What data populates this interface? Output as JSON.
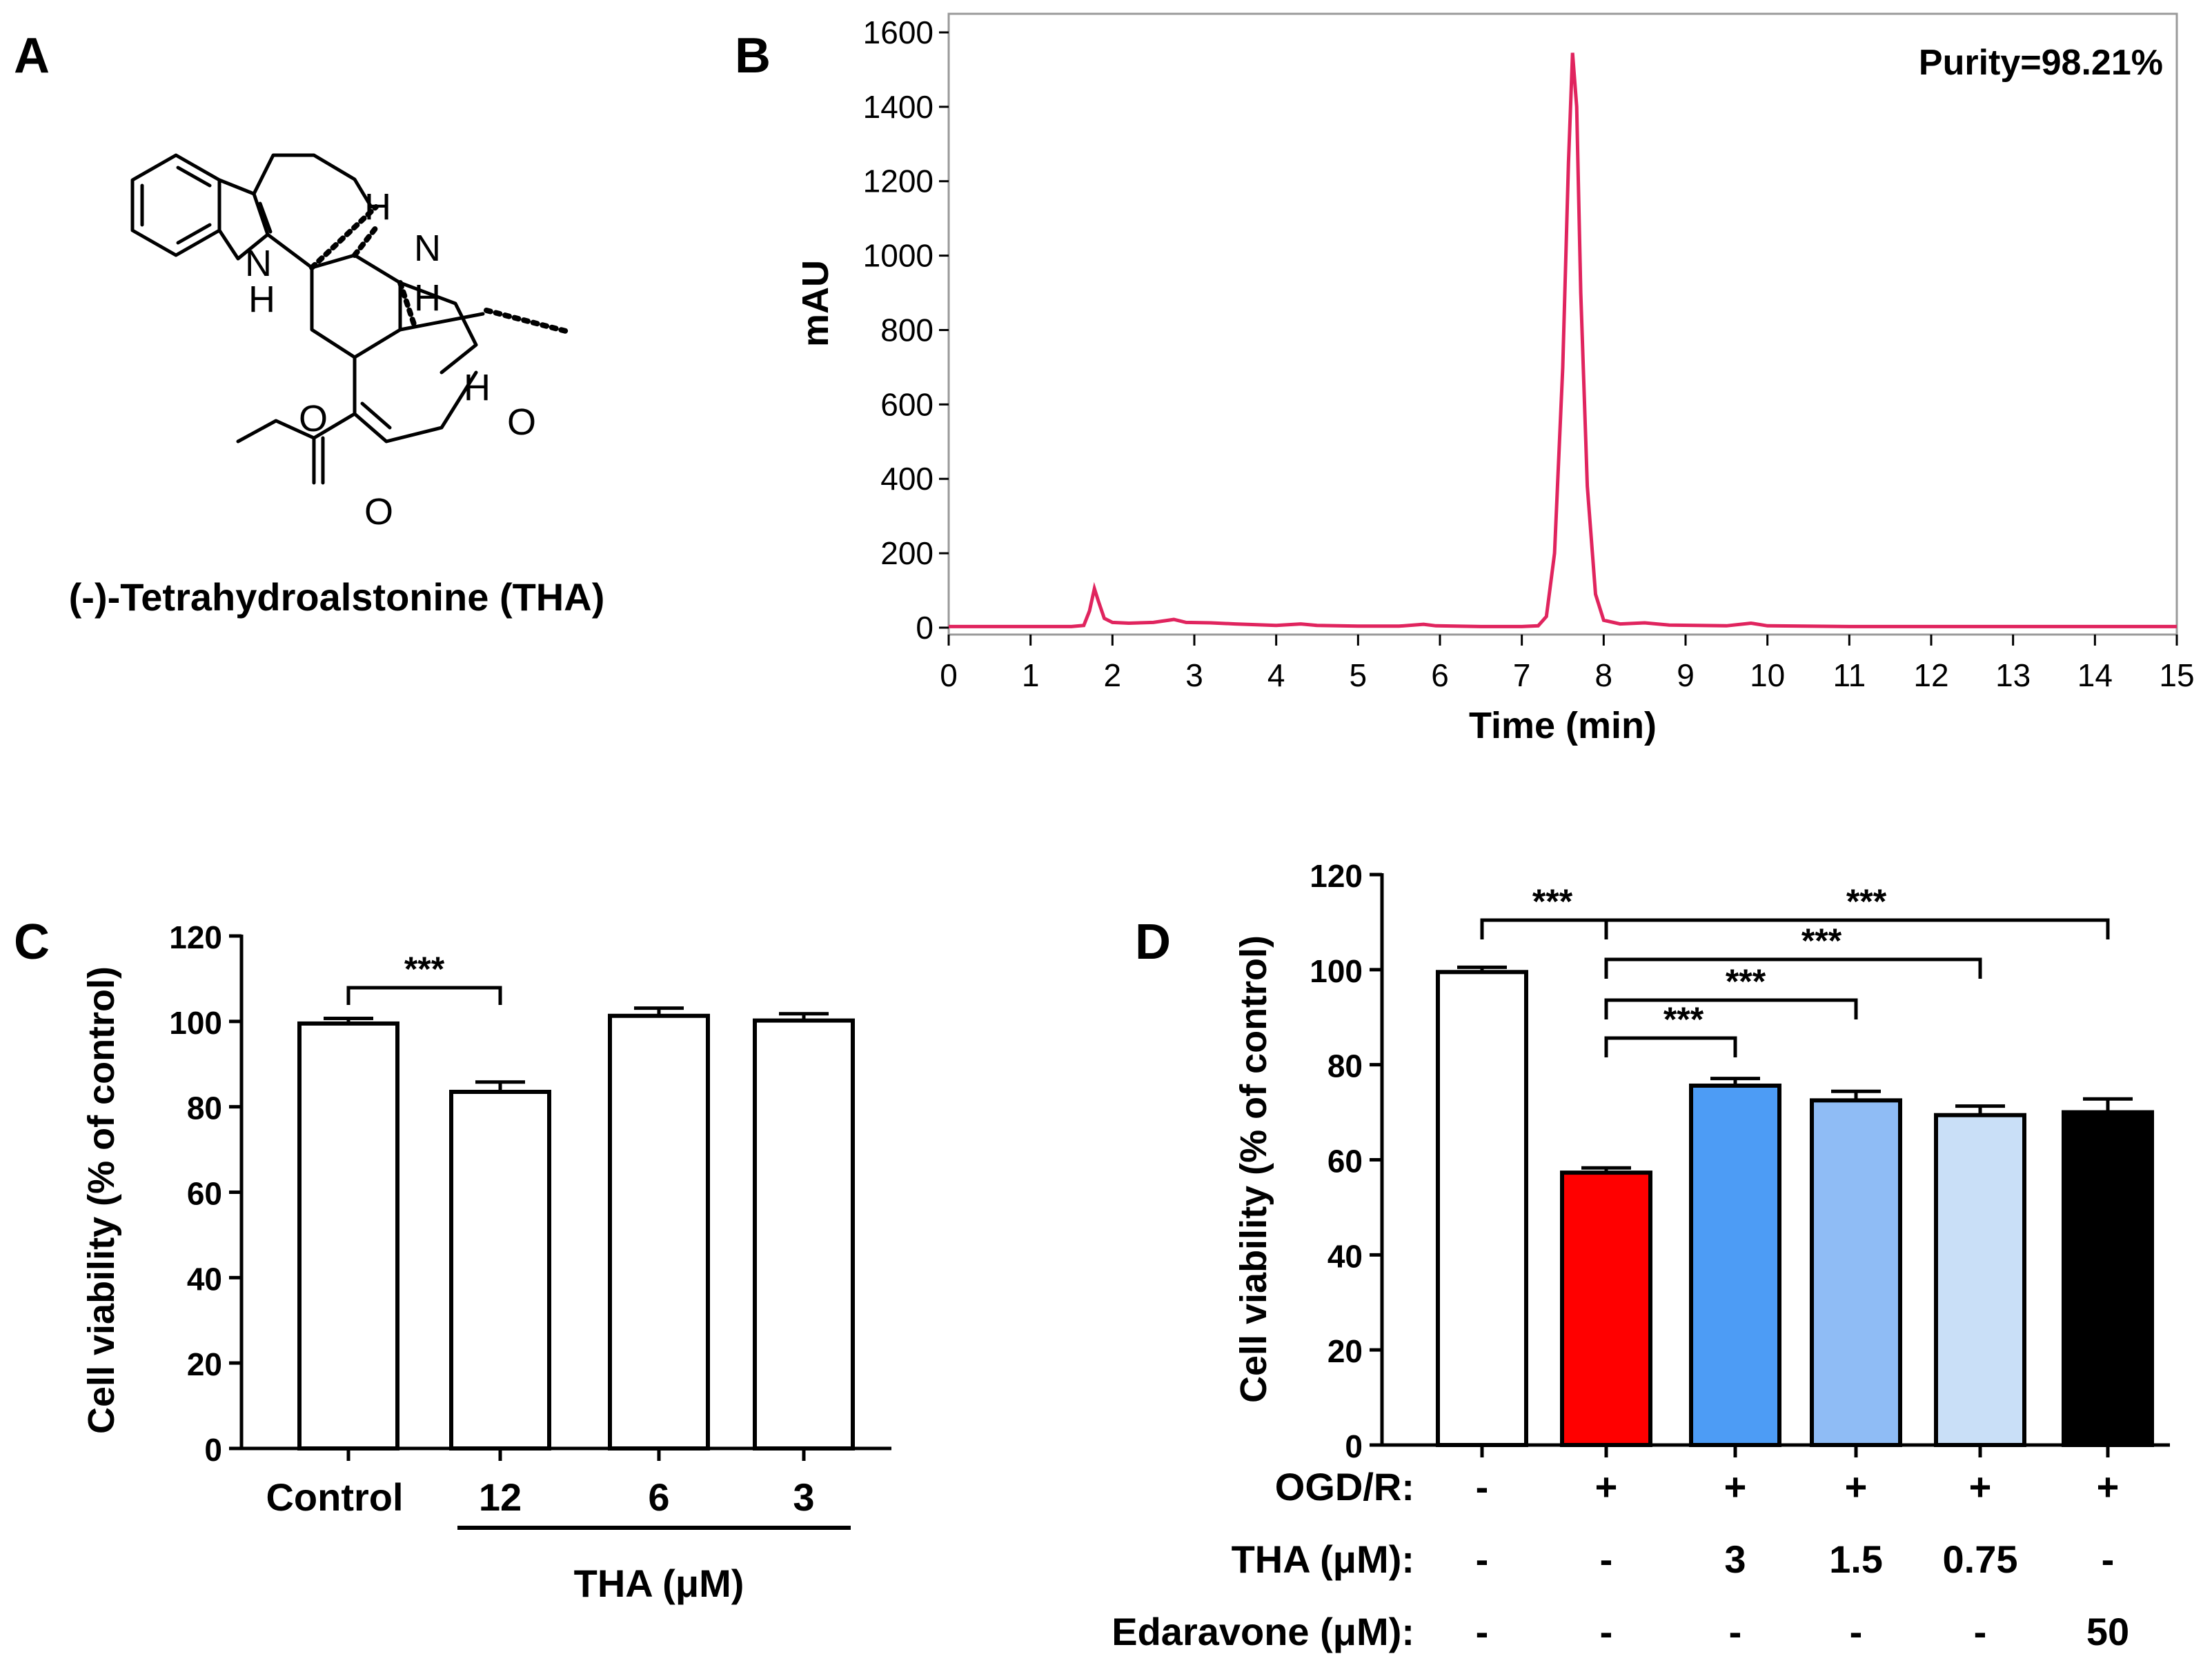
{
  "chart_data": [
    {
      "panel": "A",
      "type": "other",
      "compound": {
        "caption": "(-)-Tetrahydroalstonine (THA)",
        "atom_labels": {
          "nh_n": "N",
          "nh_h": "H",
          "n": "N",
          "o_ring": "O",
          "o_ester": "O",
          "o_carbonyl": "O",
          "h1": "H",
          "h2": "H",
          "h3": "H"
        }
      }
    },
    {
      "panel": "B",
      "type": "line",
      "annotation": "Purity=98.21%",
      "xlabel": "Time (min)",
      "ylabel": "mAU",
      "xlim": [
        0,
        15
      ],
      "ylim": [
        0,
        1650
      ],
      "xticks": [
        "0",
        "1",
        "2",
        "3",
        "4",
        "5",
        "6",
        "7",
        "8",
        "9",
        "10",
        "11",
        "12",
        "13",
        "14",
        "15"
      ],
      "yticks": [
        "0",
        "200",
        "400",
        "600",
        "800",
        "1000",
        "1200",
        "1400",
        "1600"
      ],
      "grid": false,
      "line_color": "#e0245e",
      "series": [
        {
          "name": "chromatogram",
          "points": [
            [
              0,
              3
            ],
            [
              1.5,
              3
            ],
            [
              1.65,
              6
            ],
            [
              1.72,
              45
            ],
            [
              1.78,
              105
            ],
            [
              1.83,
              70
            ],
            [
              1.9,
              25
            ],
            [
              2.0,
              14
            ],
            [
              2.2,
              12
            ],
            [
              2.5,
              14
            ],
            [
              2.75,
              22
            ],
            [
              2.9,
              14
            ],
            [
              3.2,
              13
            ],
            [
              3.5,
              10
            ],
            [
              4.0,
              6
            ],
            [
              4.3,
              10
            ],
            [
              4.5,
              6
            ],
            [
              5.0,
              4
            ],
            [
              5.5,
              4
            ],
            [
              5.8,
              9
            ],
            [
              5.95,
              5
            ],
            [
              6.5,
              3
            ],
            [
              7.0,
              3
            ],
            [
              7.2,
              5
            ],
            [
              7.3,
              30
            ],
            [
              7.4,
              200
            ],
            [
              7.5,
              700
            ],
            [
              7.57,
              1250
            ],
            [
              7.62,
              1545
            ],
            [
              7.67,
              1400
            ],
            [
              7.72,
              900
            ],
            [
              7.8,
              380
            ],
            [
              7.9,
              90
            ],
            [
              8.0,
              20
            ],
            [
              8.2,
              10
            ],
            [
              8.5,
              13
            ],
            [
              8.8,
              7
            ],
            [
              9.5,
              5
            ],
            [
              9.8,
              12
            ],
            [
              10.0,
              5
            ],
            [
              11,
              3
            ],
            [
              15,
              3
            ]
          ]
        }
      ]
    },
    {
      "panel": "C",
      "type": "bar",
      "ylabel": "Cell viability (% of control)",
      "ylim": [
        0,
        120
      ],
      "yticks": [
        "0",
        "20",
        "40",
        "60",
        "80",
        "100",
        "120"
      ],
      "categories": [
        "Control",
        "12",
        "6",
        "3"
      ],
      "values": [
        99.5,
        83.5,
        101.3,
        100.2
      ],
      "errors": [
        1.2,
        2.3,
        1.8,
        1.6
      ],
      "colors": [
        "#ffffff",
        "#ffffff",
        "#ffffff",
        "#ffffff"
      ],
      "group_label": "THA (μM)",
      "significance": [
        {
          "from": 0,
          "to": 1,
          "label": "***"
        }
      ]
    },
    {
      "panel": "D",
      "type": "bar",
      "ylabel": "Cell viability (% of control)",
      "ylim": [
        0,
        120
      ],
      "yticks": [
        "0",
        "20",
        "40",
        "60",
        "80",
        "100",
        "120"
      ],
      "values": [
        99.5,
        57.3,
        75.6,
        72.5,
        69.4,
        70.0
      ],
      "errors": [
        1.0,
        1.0,
        1.5,
        1.9,
        1.9,
        2.8
      ],
      "colors": [
        "#ffffff",
        "#ff0000",
        "#4d9cf5",
        "#8fbcf5",
        "#c9dff7",
        "#000000"
      ],
      "condition_rows": [
        {
          "label": "OGD/R:",
          "values": [
            "-",
            "+",
            "+",
            "+",
            "+",
            "+"
          ]
        },
        {
          "label": "THA (μM):",
          "values": [
            "-",
            "-",
            "3",
            "1.5",
            "0.75",
            "-"
          ]
        },
        {
          "label": "Edaravone (μM):",
          "values": [
            "-",
            "-",
            "-",
            "-",
            "-",
            "50"
          ]
        }
      ],
      "significance": [
        {
          "from": 0,
          "to": 1,
          "label": "***"
        },
        {
          "from": 1,
          "to": 5,
          "label": "***"
        },
        {
          "from": 1,
          "to": 4,
          "label": "***"
        },
        {
          "from": 1,
          "to": 3,
          "label": "***"
        },
        {
          "from": 1,
          "to": 2,
          "label": "***"
        }
      ]
    }
  ]
}
